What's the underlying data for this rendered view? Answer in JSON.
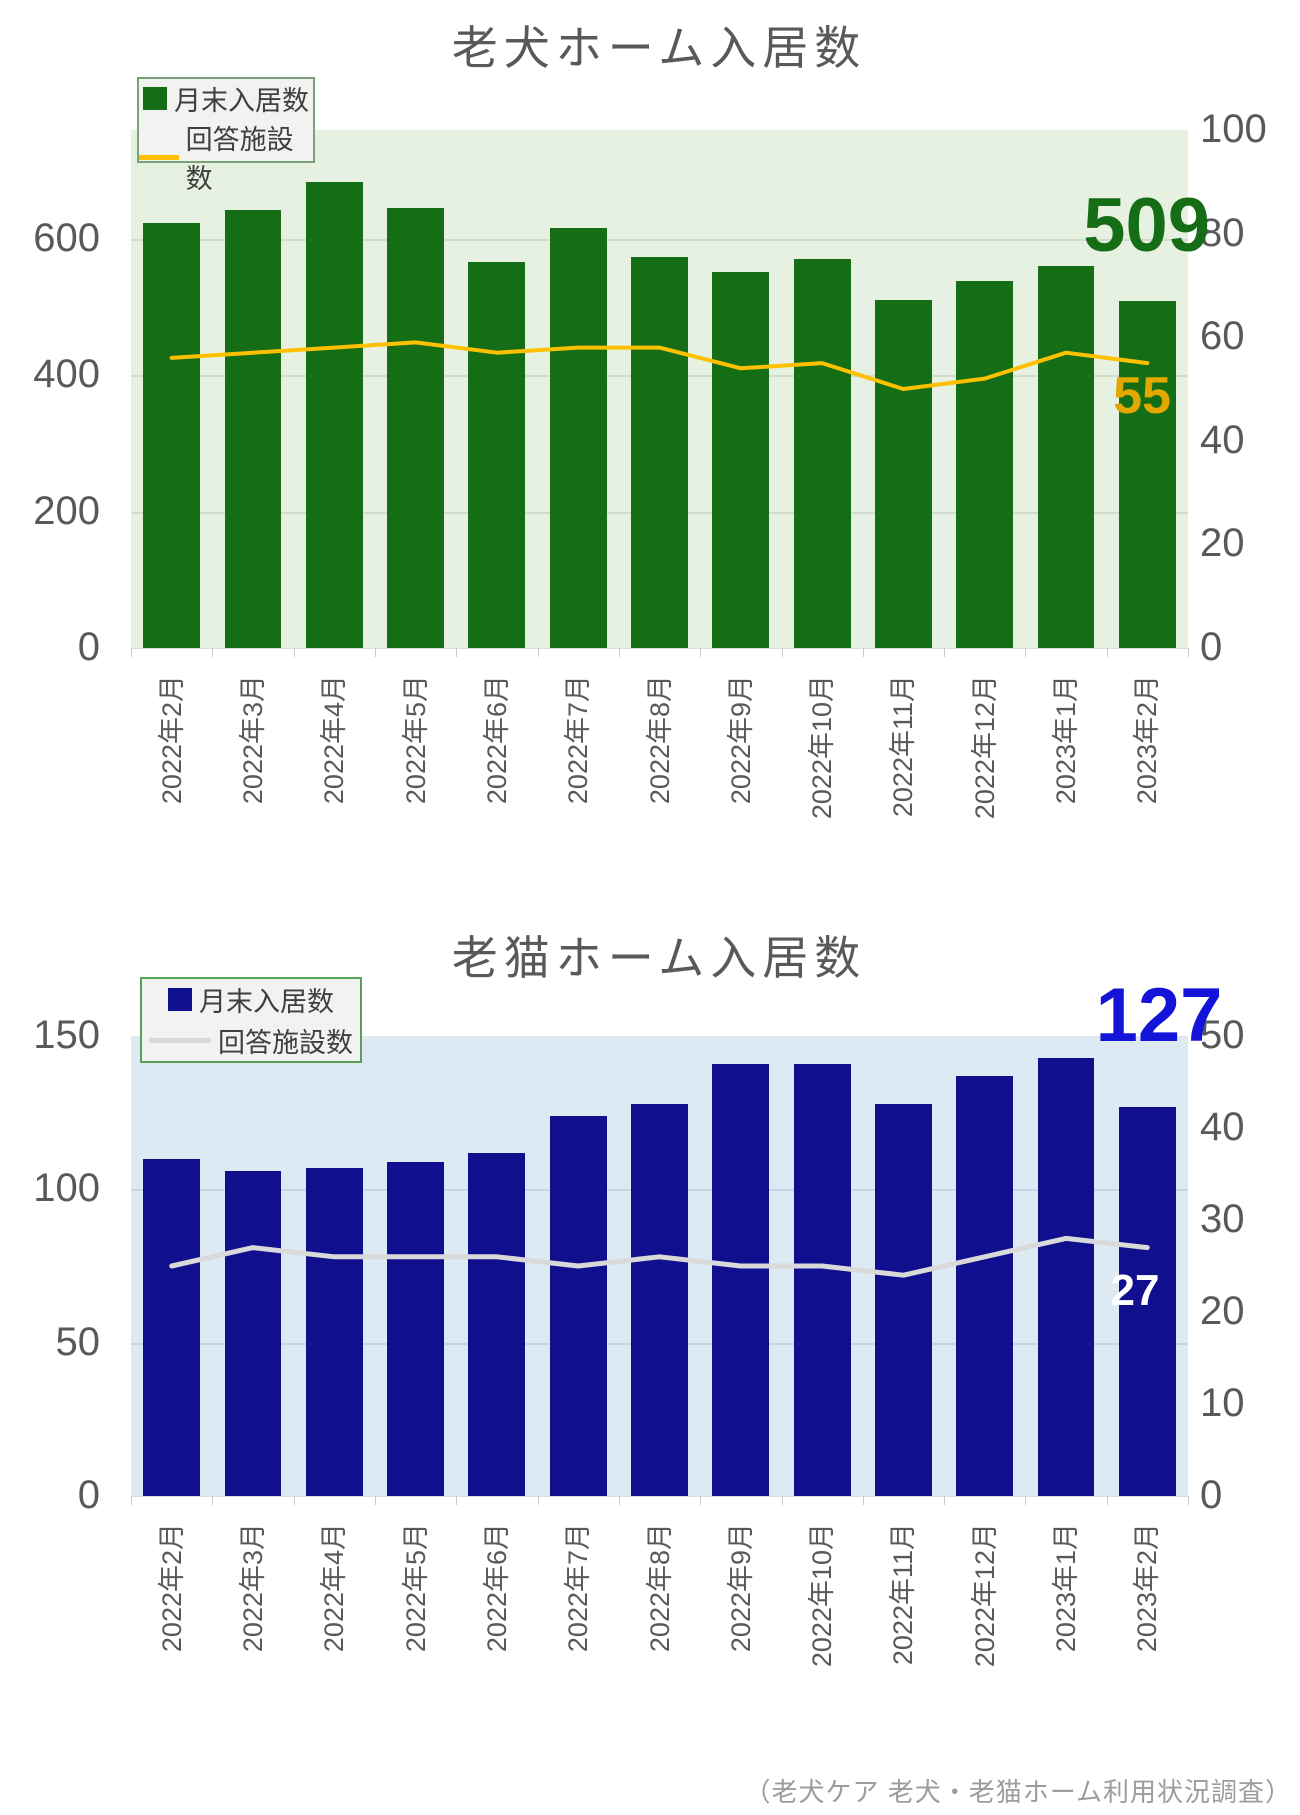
{
  "footer": "（老犬ケア 老犬・老猫ホーム利用状況調査）",
  "colors": {
    "axis_text": "#595959",
    "title_text": "#595959",
    "footer_text": "#9c9c9c",
    "legend_bg": "#f2f2f0",
    "legend_text": "#3f3f3f"
  },
  "chart_data": [
    {
      "type": "bar+line",
      "title": "老犬ホーム入居数",
      "categories": [
        "2022年2月",
        "2022年3月",
        "2022年4月",
        "2022年5月",
        "2022年6月",
        "2022年7月",
        "2022年8月",
        "2022年9月",
        "2022年10月",
        "2022年11月",
        "2022年12月",
        "2023年1月",
        "2023年2月"
      ],
      "series": [
        {
          "name": "月末入居数",
          "type": "bar",
          "axis": "left",
          "color": "#156e15",
          "values": [
            624,
            642,
            684,
            645,
            566,
            617,
            574,
            552,
            571,
            510,
            539,
            560,
            509
          ]
        },
        {
          "name": "回答施設数",
          "type": "line",
          "axis": "right",
          "color": "#ffc000",
          "values": [
            56,
            57,
            58,
            59,
            57,
            58,
            58,
            54,
            55,
            50,
            52,
            57,
            55
          ]
        }
      ],
      "left_axis": {
        "ticks": [
          "0",
          "200",
          "400",
          "600"
        ],
        "tick_values": [
          0,
          200,
          400,
          600
        ],
        "range": [
          0,
          760
        ]
      },
      "right_axis": {
        "ticks": [
          "0",
          "20",
          "40",
          "60",
          "80",
          "100"
        ],
        "tick_values": [
          0,
          20,
          40,
          60,
          80,
          100
        ],
        "range": [
          0,
          100
        ]
      },
      "end_labels": {
        "bar": "509",
        "line": "55"
      },
      "end_label_colors": {
        "bar": "#156e15",
        "line": "#e3a800"
      },
      "plot_bg": "#e7f1e2",
      "legend_border": "#79a279",
      "legend_position": "top-left",
      "grid": true
    },
    {
      "type": "bar+line",
      "title": "老猫ホーム入居数",
      "categories": [
        "2022年2月",
        "2022年3月",
        "2022年4月",
        "2022年5月",
        "2022年6月",
        "2022年7月",
        "2022年8月",
        "2022年9月",
        "2022年10月",
        "2022年11月",
        "2022年12月",
        "2023年1月",
        "2023年2月"
      ],
      "series": [
        {
          "name": "月末入居数",
          "type": "bar",
          "axis": "left",
          "color": "#10108e",
          "values": [
            110,
            106,
            107,
            109,
            112,
            124,
            128,
            141,
            141,
            128,
            137,
            143,
            127
          ]
        },
        {
          "name": "回答施設数",
          "type": "line",
          "axis": "right",
          "color": "#d9d9d9",
          "values": [
            25,
            27,
            26,
            26,
            26,
            25,
            26,
            25,
            25,
            24,
            26,
            28,
            27
          ]
        }
      ],
      "left_axis": {
        "ticks": [
          "0",
          "50",
          "100",
          "150"
        ],
        "tick_values": [
          0,
          50,
          100,
          150
        ],
        "range": [
          0,
          150
        ]
      },
      "right_axis": {
        "ticks": [
          "0",
          "10",
          "20",
          "30",
          "40",
          "50"
        ],
        "tick_values": [
          0,
          10,
          20,
          30,
          40,
          50
        ],
        "range": [
          0,
          50
        ]
      },
      "end_labels": {
        "bar": "127",
        "line": "27"
      },
      "end_label_colors": {
        "bar": "#1414d8",
        "line": "#ffffff"
      },
      "plot_bg": "#dde9f3",
      "legend_border": "#57a257",
      "legend_position": "top-left",
      "grid": true
    }
  ]
}
